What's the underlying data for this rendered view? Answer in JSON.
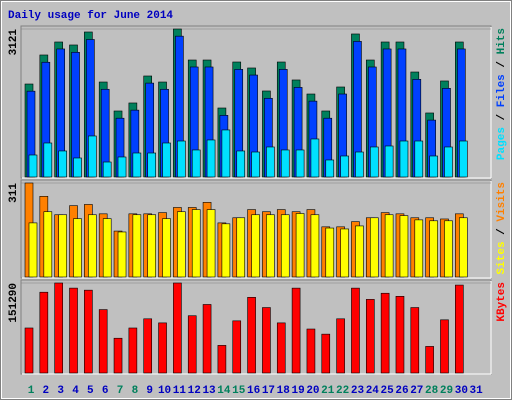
{
  "chart_data": {
    "type": "bar",
    "title": "Daily usage for June 2014",
    "title_color": "#0000c0",
    "categories": [
      "1",
      "2",
      "3",
      "4",
      "5",
      "6",
      "7",
      "8",
      "9",
      "10",
      "11",
      "12",
      "13",
      "14",
      "15",
      "16",
      "17",
      "18",
      "19",
      "20",
      "21",
      "22",
      "23",
      "24",
      "25",
      "26",
      "27",
      "28",
      "29",
      "30",
      "31"
    ],
    "weekend_categories": [
      "1",
      "7",
      "8",
      "14",
      "15",
      "21",
      "22",
      "28",
      "29"
    ],
    "weekend_color": "#00805c",
    "label_color": "#0000c0",
    "legend_separator": " / ",
    "panels": [
      {
        "ylim": [
          0,
          3121
        ],
        "yticks": [
          3121
        ],
        "series": [
          {
            "name": "Pages",
            "color": "#00e0ff",
            "values": [
              464,
              717,
              549,
              401,
              865,
              316,
              422,
              506,
              506,
              717,
              759,
              570,
              781,
              992,
              549,
              527,
              633,
              570,
              570,
              802,
              359,
              443,
              527,
              633,
              654,
              759,
              759,
              443,
              633,
              759,
              null
            ]
          },
          {
            "name": "Files",
            "color": "#0040ff",
            "values": [
              1810,
              2420,
              2700,
              2630,
              2900,
              1850,
              1240,
              1410,
              1980,
              1850,
              2970,
              2320,
              2320,
              1300,
              2270,
              2150,
              1660,
              2270,
              1890,
              1600,
              1240,
              1750,
              2860,
              2320,
              2700,
              2700,
              2060,
              1200,
              1870,
              2700,
              null
            ]
          },
          {
            "name": "Hits",
            "color": "#00805c",
            "values": [
              1961,
              2573,
              2847,
              2784,
              3058,
              2003,
              1392,
              1561,
              2130,
              2003,
              3121,
              2467,
              2467,
              1455,
              2425,
              2299,
              1814,
              2425,
              2046,
              1750,
              1392,
              1898,
              3016,
              2467,
              2847,
              2847,
              2214,
              1350,
              2025,
              2847,
              null
            ]
          }
        ]
      },
      {
        "ylim": [
          0,
          311
        ],
        "yticks": [
          311
        ],
        "series": [
          {
            "name": "Sites",
            "color": "#ffff00",
            "values": [
              179,
              216,
              206,
              193,
              206,
              193,
              149,
              206,
              206,
              193,
              216,
              223,
              223,
              176,
              196,
              206,
              206,
              206,
              210,
              206,
              162,
              159,
              169,
              196,
              206,
              203,
              189,
              186,
              186,
              196,
              null
            ]
          },
          {
            "name": "Visits",
            "color": "#ff8000",
            "values": [
              311,
              267,
              206,
              236,
              240,
              209,
              152,
              209,
              209,
              213,
              230,
              230,
              247,
              179,
              196,
              223,
              216,
              223,
              216,
              223,
              166,
              166,
              183,
              196,
              213,
              209,
              196,
              196,
              192,
              209,
              null
            ]
          }
        ]
      },
      {
        "ylim": [
          0,
          151290
        ],
        "yticks": [
          151290
        ],
        "series": [
          {
            "name": "KBytes",
            "color": "#ff0000",
            "values": [
              75654,
              135814,
              151290,
              142700,
              139240,
              106600,
              58450,
              75650,
              91110,
              84230,
              151290,
              96270,
              115180,
              46420,
              87670,
              127210,
              110020,
              84230,
              142680,
              73920,
              65320,
              91110,
              142680,
              123770,
              134080,
              128930,
              110020,
              44690,
              89390,
              147830,
              null
            ]
          }
        ]
      }
    ]
  }
}
